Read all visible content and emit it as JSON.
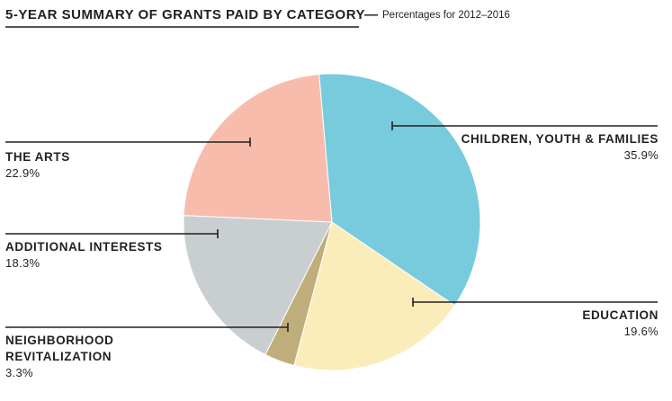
{
  "chart_data": {
    "type": "pie",
    "title": "5-YEAR SUMMARY OF GRANTS PAID BY CATEGORY",
    "title_dash": "—",
    "subtitle": "Percentages for 2012–2016",
    "unit": "%",
    "slices": [
      {
        "label": "CHILDREN, YOUTH & FAMILIES",
        "value": 35.9,
        "value_text": "35.9%",
        "color": "#77cbdc"
      },
      {
        "label": "EDUCATION",
        "value": 19.6,
        "value_text": "19.6%",
        "color": "#faedb9"
      },
      {
        "label": "NEIGHBORHOOD REVITALIZATION",
        "label_lines": [
          "NEIGHBORHOOD",
          "REVITALIZATION"
        ],
        "value": 3.3,
        "value_text": "3.3%",
        "color": "#bfae7a"
      },
      {
        "label": "ADDITIONAL INTERESTS",
        "value": 18.3,
        "value_text": "18.3%",
        "color": "#c9ced1"
      },
      {
        "label": "THE ARTS",
        "value": 22.9,
        "value_text": "22.9%",
        "color": "#f8bcad"
      }
    ]
  }
}
